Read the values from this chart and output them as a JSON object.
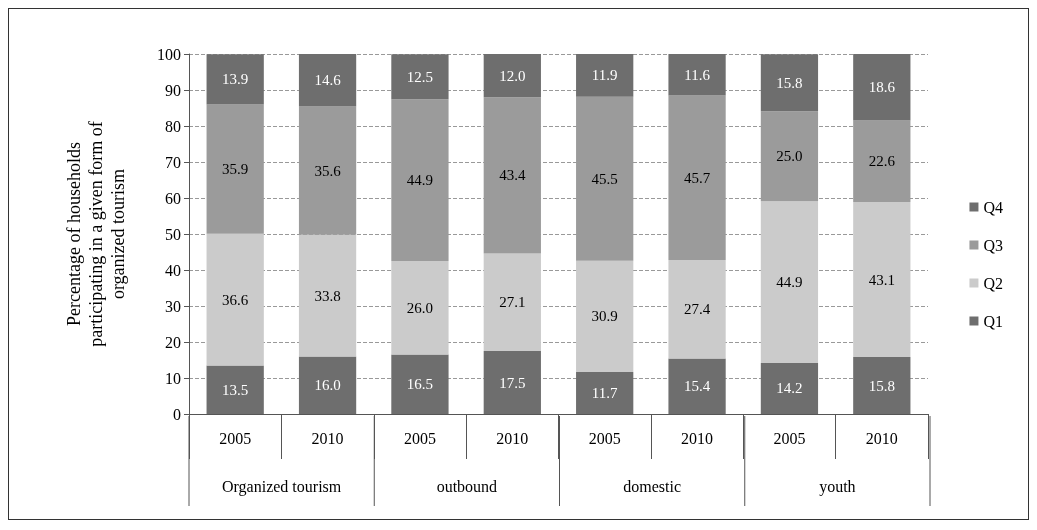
{
  "chart_data": {
    "type": "bar",
    "stacked": true,
    "ylabel": "Percentage of households\nparticipating in a given form of\norganized tourism",
    "categories": [
      "2005",
      "2010",
      "2005",
      "2010",
      "2005",
      "2010",
      "2005",
      "2010"
    ],
    "series": [
      {
        "name": "Q1",
        "color": "#6e6e6e",
        "values": [
          13.5,
          16.0,
          16.5,
          17.5,
          11.7,
          15.4,
          14.2,
          15.8
        ],
        "value_labels": [
          "13.5",
          "16.0",
          "16.5",
          "17.5",
          "11.7",
          "15.4",
          "14.2",
          "15.8"
        ]
      },
      {
        "name": "Q2",
        "color": "#cbcbcb",
        "values": [
          36.6,
          33.8,
          26.0,
          27.1,
          30.9,
          27.4,
          44.9,
          43.1
        ],
        "value_labels": [
          "36.6",
          "33.8",
          "26.0",
          "27.1",
          "30.9",
          "27.4",
          "44.9",
          "43.1"
        ]
      },
      {
        "name": "Q3",
        "color": "#9b9b9b",
        "values": [
          35.9,
          35.6,
          44.9,
          43.4,
          45.5,
          45.7,
          25.0,
          22.6
        ],
        "value_labels": [
          "35.9",
          "35.6",
          "44.9",
          "43.4",
          "45.5",
          "45.7",
          "25.0",
          "22.6"
        ]
      },
      {
        "name": "Q4",
        "color": "#6e6e6e",
        "values": [
          13.9,
          14.6,
          12.5,
          12.0,
          11.9,
          11.6,
          15.8,
          18.6
        ],
        "value_labels": [
          "13.9",
          "14.6",
          "12.5",
          "12.0",
          "11.9",
          "11.6",
          "15.8",
          "18.6"
        ]
      }
    ],
    "annotations": [
      "Organized tourism",
      "outbound",
      "domestic",
      "youth"
    ],
    "ylim": [
      0,
      100
    ],
    "yticks": [
      0,
      10,
      20,
      30,
      40,
      50,
      60,
      70,
      80,
      90,
      100
    ],
    "grid": "y",
    "legend": "right"
  }
}
